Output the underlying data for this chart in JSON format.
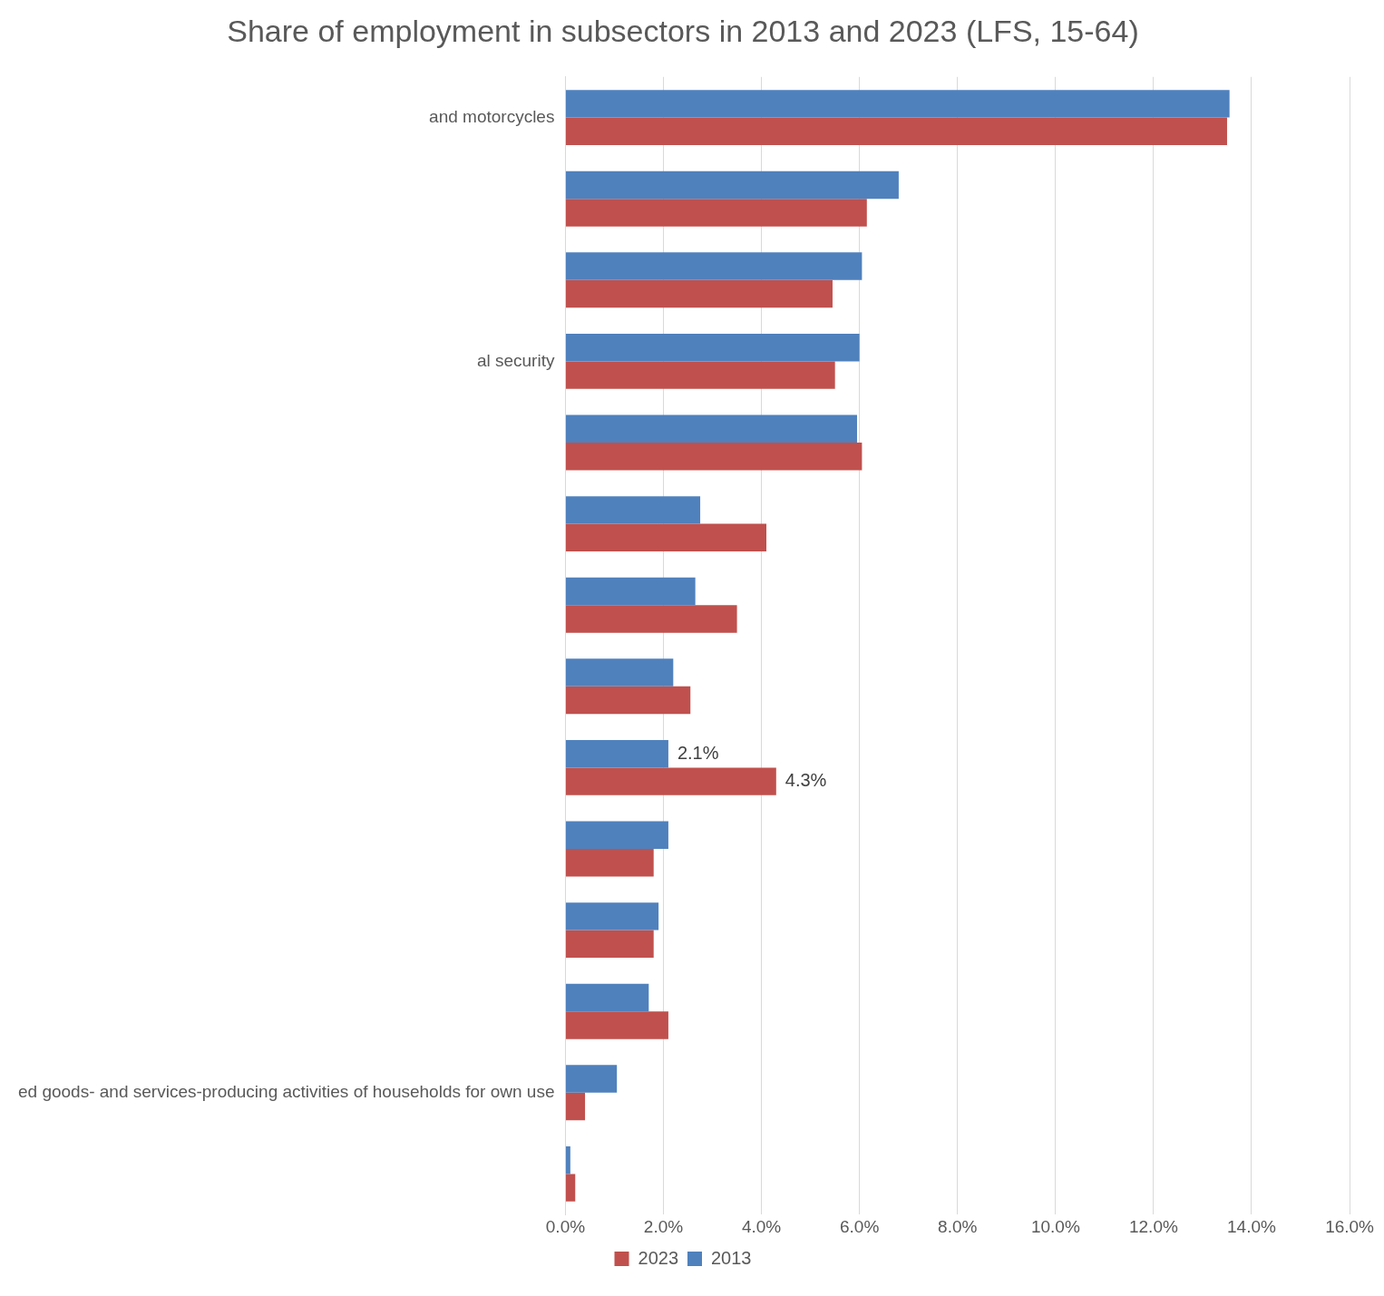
{
  "chart_data": {
    "type": "bar",
    "orientation": "horizontal",
    "title": "Share of employment in subsectors in 2013 and 2023 (LFS, 15-64)",
    "categories": [
      "and motorcycles",
      null,
      null,
      "al security",
      null,
      null,
      null,
      null,
      null,
      null,
      null,
      null,
      "ed goods- and services-producing activities of households for own use",
      null
    ],
    "series": [
      {
        "name": "2023",
        "color": "#c0504d",
        "values": [
          13.5,
          6.15,
          5.45,
          5.5,
          6.05,
          4.1,
          3.5,
          2.55,
          4.3,
          1.8,
          1.8,
          2.1,
          0.4,
          0.2
        ],
        "value_labels": [
          null,
          null,
          null,
          null,
          null,
          null,
          null,
          null,
          "4.3%",
          null,
          null,
          null,
          null,
          null
        ]
      },
      {
        "name": "2013",
        "color": "#4f81bd",
        "values": [
          13.55,
          6.8,
          6.05,
          6.0,
          5.95,
          2.75,
          2.65,
          2.2,
          2.1,
          2.1,
          1.9,
          1.7,
          1.05,
          0.1
        ],
        "value_labels": [
          null,
          null,
          null,
          null,
          null,
          null,
          null,
          null,
          "2.1%",
          null,
          null,
          null,
          null,
          null
        ]
      }
    ],
    "xlim": [
      0,
      16
    ],
    "xticks": [
      {
        "value": 0,
        "label": "0.0%"
      },
      {
        "value": 2,
        "label": "2.0%"
      },
      {
        "value": 4,
        "label": "4.0%"
      },
      {
        "value": 6,
        "label": "6.0%"
      },
      {
        "value": 8,
        "label": "8.0%"
      },
      {
        "value": 10,
        "label": "10.0%"
      },
      {
        "value": 12,
        "label": "12.0%"
      },
      {
        "value": 14,
        "label": "14.0%"
      },
      {
        "value": 16,
        "label": "16.0%"
      }
    ],
    "grid": "x",
    "legend": "bottom"
  }
}
